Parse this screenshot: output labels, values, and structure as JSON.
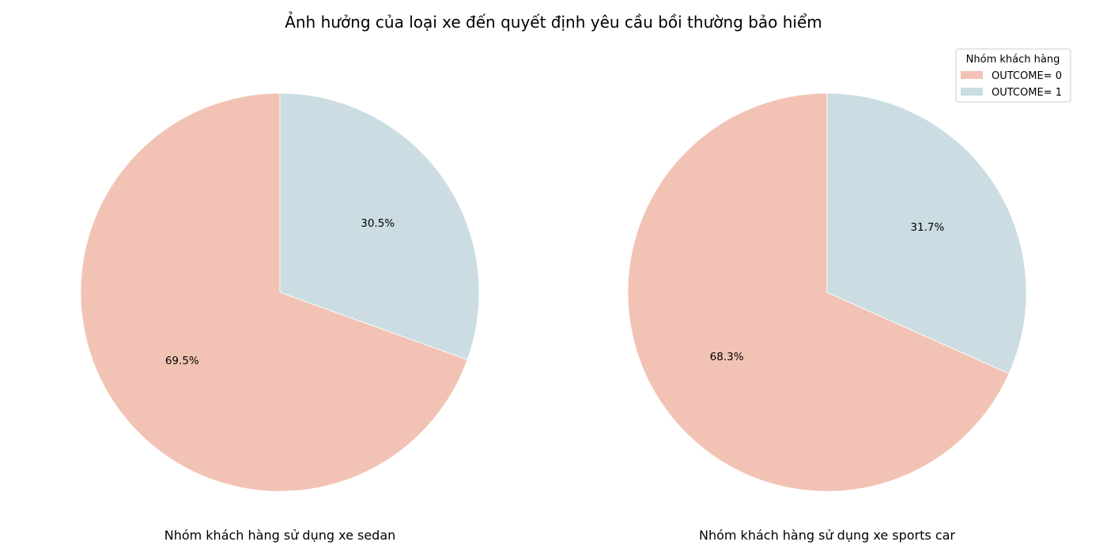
{
  "figure": {
    "title": "Ảnh hưởng của loại xe đến quyết định yêu cầu bồi thường bảo hiểm"
  },
  "legend": {
    "title": "Nhóm khách hàng",
    "placement": "top-right",
    "items": [
      {
        "label": "OUTCOME= 0",
        "color": "#f2c3b4"
      },
      {
        "label": "OUTCOME= 1",
        "color": "#cbdde3"
      }
    ]
  },
  "chart_data": [
    {
      "type": "pie",
      "caption": "Nhóm khách hàng sử dụng xe sedan",
      "slices": [
        {
          "label": "OUTCOME= 0",
          "value": 69.5,
          "display": "69.5%",
          "color": "#f2c3b4"
        },
        {
          "label": "OUTCOME= 1",
          "value": 30.5,
          "display": "30.5%",
          "color": "#cbdde3"
        }
      ]
    },
    {
      "type": "pie",
      "caption": "Nhóm khách hàng sử dụng xe sports car",
      "slices": [
        {
          "label": "OUTCOME= 0",
          "value": 68.3,
          "display": "68.3%",
          "color": "#f2c3b4"
        },
        {
          "label": "OUTCOME= 1",
          "value": 31.7,
          "display": "31.7%",
          "color": "#cbdde3"
        }
      ]
    }
  ]
}
